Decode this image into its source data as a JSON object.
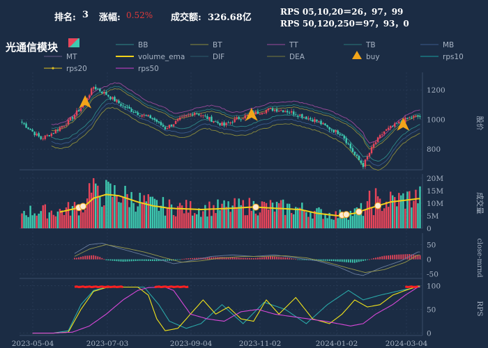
{
  "header": {
    "rank_label": "排名:",
    "rank_value": "3",
    "change_label": "涨幅:",
    "change_value": "0.52%",
    "turnover_label": "成交额:",
    "turnover_value": "326.68亿",
    "rps_short": "RPS 05,10,20＝26，97，99",
    "rps_long": "RPS 50,120,250＝97，93，0",
    "title": "光通信模块"
  },
  "legend": [
    {
      "name": "BB",
      "color": "#2f8a8a",
      "marker": "line"
    },
    {
      "name": "BT",
      "color": "#8c8c3c",
      "marker": "line"
    },
    {
      "name": "TT",
      "color": "#9c4a9c",
      "marker": "line"
    },
    {
      "name": "TB",
      "color": "#2b7a7a",
      "marker": "line"
    },
    {
      "name": "MB",
      "color": "#3b5a8a",
      "marker": "line"
    },
    {
      "name": "MT",
      "color": "#6a5a8a",
      "marker": "line"
    },
    {
      "name": "volume_ema",
      "color": "#f2d21a",
      "marker": "thick"
    },
    {
      "name": "DIF",
      "color": "#2c5c6c",
      "marker": "line"
    },
    {
      "name": "DEA",
      "color": "#7a7a3a",
      "marker": "line"
    },
    {
      "name": "buy",
      "color": "#f2a51a",
      "marker": "triangle"
    },
    {
      "name": "rps10",
      "color": "#1aa0a0",
      "marker": "line"
    },
    {
      "name": "rps20",
      "color": "#e0c020",
      "marker": "dotline"
    },
    {
      "name": "rps50",
      "color": "#d040d0",
      "marker": "line"
    }
  ],
  "colors": {
    "up": "#e8455a",
    "down": "#3ec9b0",
    "background": "#1b2c44",
    "grid": "#2b3d57",
    "axis_text": "#a8b4c4",
    "buy": "#f2a51a",
    "rps20": "#f2e41a",
    "rps50": "#d848d8",
    "rps10": "#2aa8a8",
    "rps_high": "#ff2020"
  },
  "chart_data": [
    {
      "type": "candlestick",
      "ylabel": "股价",
      "yticks": [
        800,
        1000,
        1200
      ],
      "ylim": [
        660,
        1290
      ],
      "x_dates": [
        "2023-05-04",
        "2023-07-03",
        "2023-09-04",
        "2023-11-02",
        "2024-01-02",
        "2024-03-04"
      ],
      "price_anchors": [
        [
          0,
          980
        ],
        [
          4,
          930
        ],
        [
          9,
          870
        ],
        [
          14,
          905
        ],
        [
          22,
          985
        ],
        [
          28,
          1080
        ],
        [
          34,
          1220
        ],
        [
          40,
          1170
        ],
        [
          48,
          1090
        ],
        [
          55,
          1040
        ],
        [
          62,
          1010
        ],
        [
          68,
          940
        ],
        [
          75,
          1000
        ],
        [
          82,
          1050
        ],
        [
          88,
          1010
        ],
        [
          96,
          960
        ],
        [
          103,
          1010
        ],
        [
          110,
          1040
        ],
        [
          118,
          1070
        ],
        [
          125,
          1060
        ],
        [
          132,
          1030
        ],
        [
          140,
          990
        ],
        [
          147,
          930
        ],
        [
          152,
          900
        ],
        [
          158,
          760
        ],
        [
          162,
          690
        ],
        [
          167,
          830
        ],
        [
          172,
          920
        ],
        [
          177,
          960
        ],
        [
          182,
          1000
        ],
        [
          187,
          1020
        ]
      ],
      "buy_signals": [
        30,
        109,
        181
      ]
    },
    {
      "type": "bar",
      "ylabel": "成交量",
      "yticks": [
        "0",
        "5M",
        "10M",
        "15M",
        "20M"
      ],
      "ylim": [
        0,
        20
      ],
      "series": [
        {
          "name": "volume_ema"
        }
      ],
      "ema_anchors": [
        [
          18,
          6.5
        ],
        [
          26,
          8
        ],
        [
          30,
          9
        ],
        [
          34,
          12
        ],
        [
          40,
          13.5
        ],
        [
          46,
          13
        ],
        [
          55,
          10.5
        ],
        [
          62,
          9
        ],
        [
          70,
          8
        ],
        [
          85,
          7.5
        ],
        [
          100,
          8
        ],
        [
          110,
          8.5
        ],
        [
          120,
          8
        ],
        [
          132,
          7.5
        ],
        [
          140,
          6
        ],
        [
          150,
          5
        ],
        [
          158,
          6
        ],
        [
          165,
          8
        ],
        [
          175,
          10.5
        ],
        [
          188,
          11.8
        ]
      ],
      "volume_spikes": [
        [
          32,
          18
        ],
        [
          34,
          20
        ],
        [
          36,
          17
        ],
        [
          165,
          15
        ],
        [
          168,
          16
        ]
      ],
      "markers": [
        27,
        29,
        111,
        152,
        154,
        160,
        169
      ]
    },
    {
      "type": "line",
      "ylabel": "close-mrnd",
      "yticks": [
        -50,
        0,
        50
      ],
      "ylim": [
        -65,
        75
      ],
      "series": [
        {
          "name": "DIF",
          "anchors": [
            [
              25,
              20
            ],
            [
              32,
              50
            ],
            [
              38,
              55
            ],
            [
              45,
              40
            ],
            [
              55,
              20
            ],
            [
              65,
              0
            ],
            [
              72,
              -15
            ],
            [
              80,
              -5
            ],
            [
              90,
              10
            ],
            [
              100,
              15
            ],
            [
              110,
              10
            ],
            [
              120,
              15
            ],
            [
              130,
              5
            ],
            [
              140,
              -5
            ],
            [
              150,
              -25
            ],
            [
              158,
              -50
            ],
            [
              162,
              -55
            ],
            [
              170,
              -30
            ],
            [
              180,
              -5
            ],
            [
              188,
              25
            ]
          ]
        },
        {
          "name": "DEA",
          "anchors": [
            [
              25,
              10
            ],
            [
              32,
              35
            ],
            [
              40,
              50
            ],
            [
              48,
              40
            ],
            [
              58,
              25
            ],
            [
              68,
              5
            ],
            [
              76,
              -10
            ],
            [
              85,
              -5
            ],
            [
              95,
              5
            ],
            [
              105,
              10
            ],
            [
              115,
              10
            ],
            [
              125,
              12
            ],
            [
              135,
              5
            ],
            [
              145,
              -10
            ],
            [
              155,
              -30
            ],
            [
              163,
              -45
            ],
            [
              172,
              -35
            ],
            [
              182,
              -10
            ],
            [
              188,
              15
            ]
          ]
        }
      ],
      "hist_anchors": [
        [
          26,
          5
        ],
        [
          30,
          12
        ],
        [
          34,
          14
        ],
        [
          37,
          8
        ],
        [
          40,
          -3
        ],
        [
          48,
          -8
        ],
        [
          56,
          -5
        ],
        [
          64,
          -6
        ],
        [
          72,
          -4
        ],
        [
          78,
          3
        ],
        [
          86,
          6
        ],
        [
          94,
          8
        ],
        [
          102,
          6
        ],
        [
          110,
          4
        ],
        [
          118,
          10
        ],
        [
          126,
          6
        ],
        [
          132,
          -2
        ],
        [
          140,
          -4
        ],
        [
          148,
          -6
        ],
        [
          154,
          -10
        ],
        [
          158,
          -12
        ],
        [
          163,
          -4
        ],
        [
          167,
          4
        ],
        [
          172,
          12
        ],
        [
          178,
          16
        ],
        [
          184,
          18
        ],
        [
          188,
          14
        ]
      ]
    },
    {
      "type": "line",
      "ylabel": "RPS",
      "yticks": [
        0,
        50,
        100
      ],
      "ylim": [
        -5,
        108
      ],
      "series": [
        {
          "name": "rps10",
          "anchors": [
            [
              5,
              0
            ],
            [
              15,
              0
            ],
            [
              22,
              5
            ],
            [
              28,
              60
            ],
            [
              34,
              90
            ],
            [
              40,
              97
            ],
            [
              48,
              97
            ],
            [
              58,
              97
            ],
            [
              65,
              60
            ],
            [
              70,
              25
            ],
            [
              78,
              10
            ],
            [
              85,
              20
            ],
            [
              95,
              60
            ],
            [
              105,
              20
            ],
            [
              115,
              65
            ],
            [
              125,
              50
            ],
            [
              135,
              20
            ],
            [
              145,
              60
            ],
            [
              155,
              90
            ],
            [
              162,
              70
            ],
            [
              170,
              80
            ],
            [
              180,
              90
            ],
            [
              188,
              97
            ]
          ]
        },
        {
          "name": "rps20",
          "anchors": [
            [
              5,
              0
            ],
            [
              15,
              0
            ],
            [
              22,
              2
            ],
            [
              28,
              50
            ],
            [
              34,
              88
            ],
            [
              40,
              96
            ],
            [
              48,
              97
            ],
            [
              55,
              97
            ],
            [
              60,
              80
            ],
            [
              64,
              30
            ],
            [
              68,
              5
            ],
            [
              74,
              10
            ],
            [
              80,
              40
            ],
            [
              86,
              70
            ],
            [
              92,
              40
            ],
            [
              98,
              55
            ],
            [
              104,
              30
            ],
            [
              110,
              25
            ],
            [
              116,
              70
            ],
            [
              122,
              40
            ],
            [
              130,
              75
            ],
            [
              138,
              30
            ],
            [
              146,
              20
            ],
            [
              152,
              40
            ],
            [
              158,
              70
            ],
            [
              164,
              55
            ],
            [
              170,
              60
            ],
            [
              176,
              80
            ],
            [
              182,
              90
            ],
            [
              188,
              99
            ]
          ]
        },
        {
          "name": "rps50",
          "anchors": [
            [
              5,
              0
            ],
            [
              15,
              0
            ],
            [
              24,
              2
            ],
            [
              32,
              15
            ],
            [
              40,
              40
            ],
            [
              48,
              70
            ],
            [
              55,
              90
            ],
            [
              60,
              96
            ],
            [
              68,
              97
            ],
            [
              72,
              90
            ],
            [
              80,
              40
            ],
            [
              88,
              30
            ],
            [
              96,
              25
            ],
            [
              104,
              45
            ],
            [
              112,
              50
            ],
            [
              120,
              40
            ],
            [
              128,
              35
            ],
            [
              136,
              30
            ],
            [
              144,
              25
            ],
            [
              150,
              20
            ],
            [
              156,
              15
            ],
            [
              162,
              20
            ],
            [
              168,
              40
            ],
            [
              176,
              60
            ],
            [
              182,
              80
            ],
            [
              188,
              97
            ]
          ]
        }
      ],
      "high_segments": [
        [
          25,
          48
        ],
        [
          63,
          79
        ],
        [
          182,
          188
        ]
      ]
    }
  ]
}
